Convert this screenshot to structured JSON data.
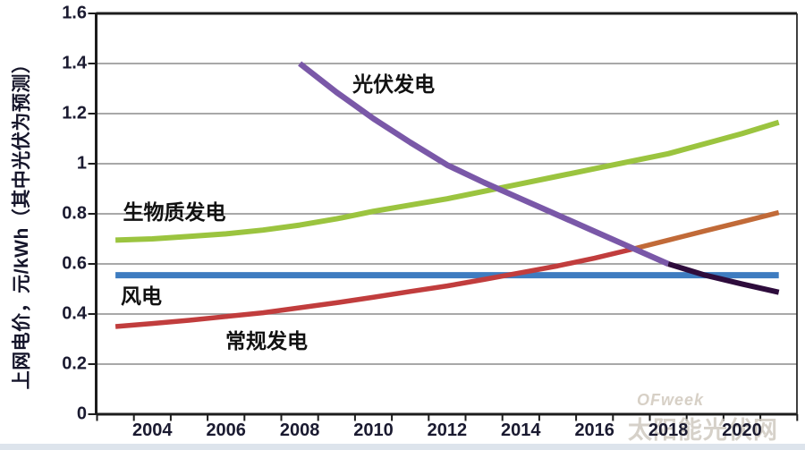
{
  "watermark": {
    "line1": "OFweek",
    "line2": "太阳能光伏网"
  },
  "chart_data": {
    "type": "line",
    "title": "",
    "xlabel": "",
    "ylabel": "上网电价，元/kWh（其中光伏为预测）",
    "xlim": [
      2002.5,
      2021.5
    ],
    "ylim": [
      0,
      1.6
    ],
    "grid": true,
    "legend_position": "none",
    "gridline_color": "#8c8c8c",
    "frame_color": "#1c1c1c",
    "y_ticks": [
      {
        "label": "0",
        "v": 0
      },
      {
        "label": "0.2",
        "v": 0.2
      },
      {
        "label": "0.4",
        "v": 0.4
      },
      {
        "label": "0.6",
        "v": 0.6
      },
      {
        "label": "0.8",
        "v": 0.8
      },
      {
        "label": "1",
        "v": 1
      },
      {
        "label": "1.2",
        "v": 1.2
      },
      {
        "label": "1.4",
        "v": 1.4
      },
      {
        "label": "1.6",
        "v": 1.6
      }
    ],
    "x_ticks": [
      {
        "label": "2004",
        "year": 2004
      },
      {
        "label": "2006",
        "year": 2006
      },
      {
        "label": "2008",
        "year": 2008
      },
      {
        "label": "2010",
        "year": 2010
      },
      {
        "label": "2012",
        "year": 2012
      },
      {
        "label": "2014",
        "year": 2014
      },
      {
        "label": "2016",
        "year": 2016
      },
      {
        "label": "2018",
        "year": 2018
      },
      {
        "label": "2020",
        "year": 2020
      }
    ],
    "series": [
      {
        "id": "wind-power",
        "color": "#3E7CC0",
        "width": 7,
        "points": [
          [
            2003,
            0.555
          ],
          [
            2021,
            0.555
          ]
        ]
      },
      {
        "id": "biomass-power",
        "color": "#9BC43F",
        "width": 6,
        "points": [
          [
            2003,
            0.695
          ],
          [
            2004,
            0.7
          ],
          [
            2005,
            0.71
          ],
          [
            2006,
            0.72
          ],
          [
            2007,
            0.735
          ],
          [
            2008,
            0.755
          ],
          [
            2009,
            0.78
          ],
          [
            2010,
            0.81
          ],
          [
            2011,
            0.835
          ],
          [
            2012,
            0.86
          ],
          [
            2013,
            0.89
          ],
          [
            2014,
            0.92
          ],
          [
            2015,
            0.95
          ],
          [
            2016,
            0.98
          ],
          [
            2017,
            1.01
          ],
          [
            2018,
            1.04
          ],
          [
            2019,
            1.08
          ],
          [
            2020,
            1.12
          ],
          [
            2021,
            1.165
          ]
        ]
      },
      {
        "id": "conventional-power",
        "color": "#C13D3D",
        "width": 5.5,
        "points": [
          [
            2003,
            0.35
          ],
          [
            2004,
            0.362
          ],
          [
            2005,
            0.375
          ],
          [
            2006,
            0.39
          ],
          [
            2007,
            0.405
          ],
          [
            2008,
            0.425
          ],
          [
            2009,
            0.445
          ],
          [
            2010,
            0.467
          ],
          [
            2011,
            0.49
          ],
          [
            2012,
            0.512
          ],
          [
            2013,
            0.538
          ],
          [
            2014,
            0.565
          ],
          [
            2015,
            0.592
          ],
          [
            2016,
            0.623
          ],
          [
            2017,
            0.658
          ]
        ]
      },
      {
        "id": "conventional-power-forecast",
        "color": "#C16A38",
        "width": 5.5,
        "points": [
          [
            2017,
            0.658
          ],
          [
            2018,
            0.695
          ],
          [
            2019,
            0.732
          ],
          [
            2020,
            0.768
          ],
          [
            2021,
            0.805
          ]
        ]
      },
      {
        "id": "pv-power",
        "color": "#7A58A8",
        "width": 6.5,
        "points": [
          [
            2008,
            1.4
          ],
          [
            2009,
            1.285
          ],
          [
            2010,
            1.18
          ],
          [
            2011,
            1.085
          ],
          [
            2012,
            0.995
          ],
          [
            2013,
            0.925
          ],
          [
            2014,
            0.86
          ],
          [
            2015,
            0.795
          ],
          [
            2016,
            0.73
          ],
          [
            2017,
            0.665
          ],
          [
            2018,
            0.6
          ]
        ]
      },
      {
        "id": "pv-power-forecast",
        "color": "#2E0C3C",
        "width": 6,
        "points": [
          [
            2018,
            0.6
          ],
          [
            2019,
            0.555
          ],
          [
            2020,
            0.52
          ],
          [
            2021,
            0.487
          ]
        ]
      }
    ],
    "annotations": [
      {
        "id": "pv-label",
        "text": "光伏发电",
        "anchor_year": 2010.55,
        "anchor_value": 1.325
      },
      {
        "id": "biomass-label",
        "text": "生物质发电",
        "anchor_year": 2004.6,
        "anchor_value": 0.815
      },
      {
        "id": "wind-label",
        "text": "风电",
        "anchor_year": 2003.7,
        "anchor_value": 0.48
      },
      {
        "id": "conventional-label",
        "text": "常规发电",
        "anchor_year": 2007.1,
        "anchor_value": 0.3
      }
    ]
  }
}
